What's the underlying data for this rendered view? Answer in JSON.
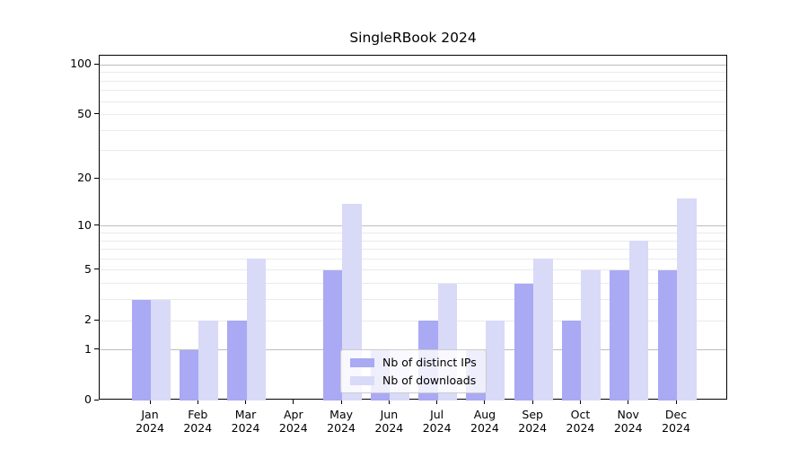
{
  "chart_data": {
    "type": "bar",
    "title": "SingleRBook 2024",
    "categories": [
      "Jan",
      "Feb",
      "Mar",
      "Apr",
      "May",
      "Jun",
      "Jul",
      "Aug",
      "Sep",
      "Oct",
      "Nov",
      "Dec"
    ],
    "year_label": "2024",
    "series": [
      {
        "name": "Nb of distinct IPs",
        "color": "#a9a9f4",
        "values": [
          3,
          1,
          2,
          0,
          5,
          1,
          2,
          1,
          4,
          2,
          5,
          5
        ]
      },
      {
        "name": "Nb of downloads",
        "color": "#d9d9f8",
        "values": [
          3,
          2,
          6,
          0,
          14,
          1,
          4,
          2,
          6,
          5,
          8,
          15
        ]
      }
    ],
    "xlabel": "",
    "ylabel": "",
    "yscale": "log1p",
    "y_ticks": [
      0,
      1,
      2,
      5,
      10,
      20,
      50,
      100
    ],
    "ylim": [
      0,
      113.6
    ],
    "grid": {
      "major_values": [
        1,
        10,
        100
      ],
      "minor_values": [
        2,
        3,
        4,
        5,
        6,
        7,
        8,
        9,
        20,
        30,
        40,
        50,
        60,
        70,
        80,
        90
      ],
      "major_color": "#bdbdbd",
      "minor_color": "#eaeaea"
    },
    "legend": {
      "position": "lower-center-inside"
    },
    "frame_color": "#000000",
    "text_color": "#000000",
    "background": "#ffffff"
  }
}
